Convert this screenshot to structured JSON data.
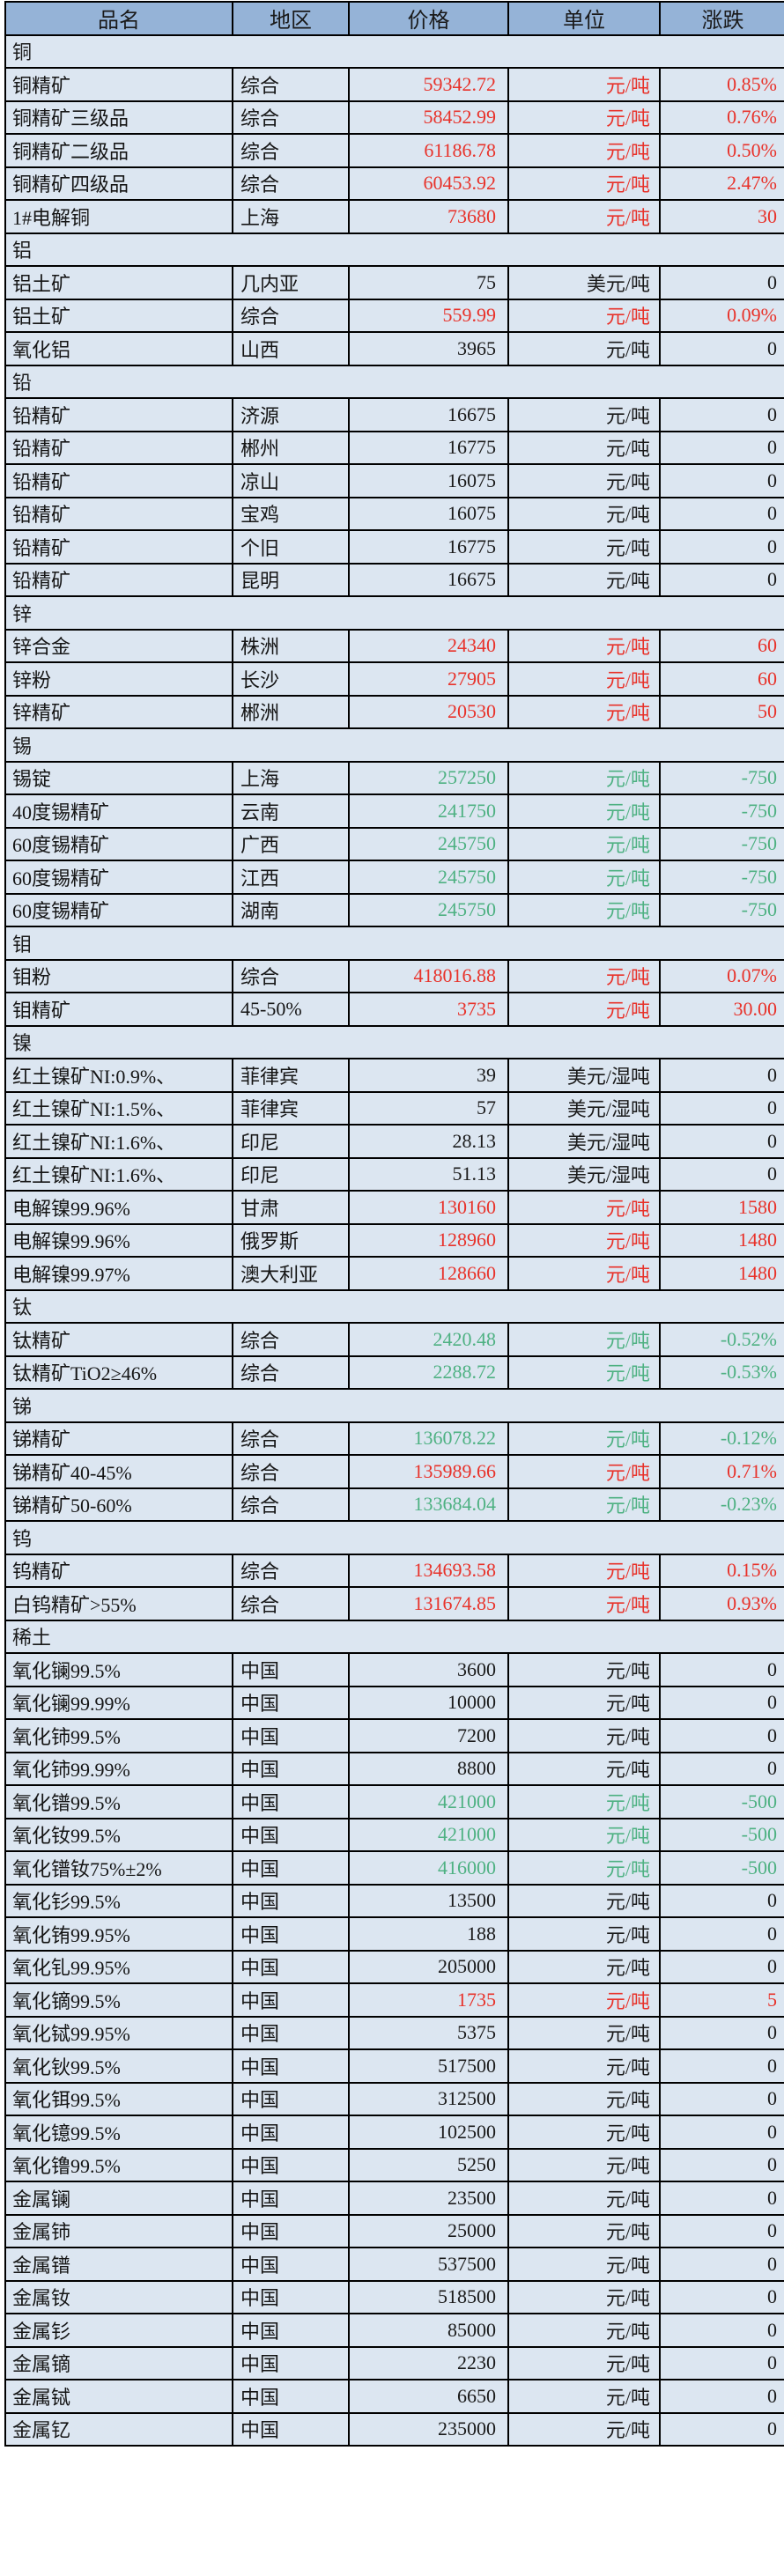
{
  "table": {
    "columns": [
      "品名",
      "地区",
      "价格",
      "单位",
      "涨跌"
    ],
    "colors": {
      "up": "#e8322a",
      "down": "#4eb182",
      "flat": "#1a1a1a",
      "header_bg": "#95b3d7",
      "row_bg": "#dce6f1",
      "border": "#000000"
    },
    "sections": [
      {
        "title": "铜",
        "rows": [
          {
            "name": "铜精矿",
            "region": "综合",
            "price": "59342.72",
            "unit": "元/吨",
            "change": "0.85%",
            "trend": "up"
          },
          {
            "name": "铜精矿三级品",
            "region": "综合",
            "price": "58452.99",
            "unit": "元/吨",
            "change": "0.76%",
            "trend": "up"
          },
          {
            "name": "铜精矿二级品",
            "region": "综合",
            "price": "61186.78",
            "unit": "元/吨",
            "change": "0.50%",
            "trend": "up"
          },
          {
            "name": "铜精矿四级品",
            "region": "综合",
            "price": "60453.92",
            "unit": "元/吨",
            "change": "2.47%",
            "trend": "up"
          },
          {
            "name": "1#电解铜",
            "region": "上海",
            "price": "73680",
            "unit": "元/吨",
            "change": "30",
            "trend": "up"
          }
        ]
      },
      {
        "title": "铝",
        "rows": [
          {
            "name": "铝土矿",
            "region": "几内亚",
            "price": "75",
            "unit": "美元/吨",
            "change": "0",
            "trend": "flat"
          },
          {
            "name": "铝土矿",
            "region": "综合",
            "price": "559.99",
            "unit": "元/吨",
            "change": "0.09%",
            "trend": "up"
          },
          {
            "name": "氧化铝",
            "region": "山西",
            "price": "3965",
            "unit": "元/吨",
            "change": "0",
            "trend": "flat"
          }
        ]
      },
      {
        "title": "铅",
        "rows": [
          {
            "name": "铅精矿",
            "region": "济源",
            "price": "16675",
            "unit": "元/吨",
            "change": "0",
            "trend": "flat"
          },
          {
            "name": "铅精矿",
            "region": "郴州",
            "price": "16775",
            "unit": "元/吨",
            "change": "0",
            "trend": "flat"
          },
          {
            "name": "铅精矿",
            "region": "凉山",
            "price": "16075",
            "unit": "元/吨",
            "change": "0",
            "trend": "flat"
          },
          {
            "name": "铅精矿",
            "region": "宝鸡",
            "price": "16075",
            "unit": "元/吨",
            "change": "0",
            "trend": "flat"
          },
          {
            "name": "铅精矿",
            "region": "个旧",
            "price": "16775",
            "unit": "元/吨",
            "change": "0",
            "trend": "flat"
          },
          {
            "name": "铅精矿",
            "region": "昆明",
            "price": "16675",
            "unit": "元/吨",
            "change": "0",
            "trend": "flat"
          }
        ]
      },
      {
        "title": "锌",
        "rows": [
          {
            "name": "锌合金",
            "region": "株洲",
            "price": "24340",
            "unit": "元/吨",
            "change": "60",
            "trend": "up"
          },
          {
            "name": "锌粉",
            "region": "长沙",
            "price": "27905",
            "unit": "元/吨",
            "change": "60",
            "trend": "up"
          },
          {
            "name": "锌精矿",
            "region": "郴洲",
            "price": "20530",
            "unit": "元/吨",
            "change": "50",
            "trend": "up"
          }
        ]
      },
      {
        "title": "锡",
        "rows": [
          {
            "name": "锡锭",
            "region": "上海",
            "price": "257250",
            "unit": "元/吨",
            "change": "-750",
            "trend": "down"
          },
          {
            "name": "40度锡精矿",
            "region": "云南",
            "price": "241750",
            "unit": "元/吨",
            "change": "-750",
            "trend": "down"
          },
          {
            "name": "60度锡精矿",
            "region": "广西",
            "price": "245750",
            "unit": "元/吨",
            "change": "-750",
            "trend": "down"
          },
          {
            "name": "60度锡精矿",
            "region": "江西",
            "price": "245750",
            "unit": "元/吨",
            "change": "-750",
            "trend": "down"
          },
          {
            "name": "60度锡精矿",
            "region": "湖南",
            "price": "245750",
            "unit": "元/吨",
            "change": "-750",
            "trend": "down"
          }
        ]
      },
      {
        "title": "钼",
        "rows": [
          {
            "name": "钼粉",
            "region": "综合",
            "price": "418016.88",
            "unit": "元/吨",
            "change": "0.07%",
            "trend": "up"
          },
          {
            "name": "钼精矿",
            "region": "45-50%",
            "price": "3735",
            "unit": "元/吨",
            "change": "30.00",
            "trend": "up"
          }
        ]
      },
      {
        "title": "镍",
        "rows": [
          {
            "name": "红土镍矿NI:0.9%、",
            "region": "菲律宾",
            "price": "39",
            "unit": "美元/湿吨",
            "change": "0",
            "trend": "flat"
          },
          {
            "name": "红土镍矿NI:1.5%、",
            "region": "菲律宾",
            "price": "57",
            "unit": "美元/湿吨",
            "change": "0",
            "trend": "flat"
          },
          {
            "name": "红土镍矿NI:1.6%、",
            "region": "印尼",
            "price": "28.13",
            "unit": "美元/湿吨",
            "change": "0",
            "trend": "flat"
          },
          {
            "name": "红土镍矿NI:1.6%、",
            "region": "印尼",
            "price": "51.13",
            "unit": "美元/湿吨",
            "change": "0",
            "trend": "flat"
          },
          {
            "name": "电解镍99.96%",
            "region": "甘肃",
            "price": "130160",
            "unit": "元/吨",
            "change": "1580",
            "trend": "up"
          },
          {
            "name": "电解镍99.96%",
            "region": "俄罗斯",
            "price": "128960",
            "unit": "元/吨",
            "change": "1480",
            "trend": "up"
          },
          {
            "name": "电解镍99.97%",
            "region": "澳大利亚",
            "price": "128660",
            "unit": "元/吨",
            "change": "1480",
            "trend": "up"
          }
        ]
      },
      {
        "title": "钛",
        "rows": [
          {
            "name": "钛精矿",
            "region": "综合",
            "price": "2420.48",
            "unit": "元/吨",
            "change": "-0.52%",
            "trend": "down"
          },
          {
            "name": "钛精矿TiO2≥46%",
            "region": "综合",
            "price": "2288.72",
            "unit": "元/吨",
            "change": "-0.53%",
            "trend": "down"
          }
        ]
      },
      {
        "title": "锑",
        "rows": [
          {
            "name": "锑精矿",
            "region": "综合",
            "price": "136078.22",
            "unit": "元/吨",
            "change": "-0.12%",
            "trend": "down"
          },
          {
            "name": "锑精矿40-45%",
            "region": "综合",
            "price": "135989.66",
            "unit": "元/吨",
            "change": "0.71%",
            "trend": "up"
          },
          {
            "name": "锑精矿50-60%",
            "region": "综合",
            "price": "133684.04",
            "unit": "元/吨",
            "change": "-0.23%",
            "trend": "down"
          }
        ]
      },
      {
        "title": "钨",
        "rows": [
          {
            "name": "钨精矿",
            "region": "综合",
            "price": "134693.58",
            "unit": "元/吨",
            "change": "0.15%",
            "trend": "up"
          },
          {
            "name": "白钨精矿>55%",
            "region": "综合",
            "price": "131674.85",
            "unit": "元/吨",
            "change": "0.93%",
            "trend": "up"
          }
        ]
      },
      {
        "title": "稀土",
        "rows": [
          {
            "name": "氧化镧99.5%",
            "region": "中国",
            "price": "3600",
            "unit": "元/吨",
            "change": "0",
            "trend": "flat"
          },
          {
            "name": "氧化镧99.99%",
            "region": "中国",
            "price": "10000",
            "unit": "元/吨",
            "change": "0",
            "trend": "flat"
          },
          {
            "name": "氧化铈99.5%",
            "region": "中国",
            "price": "7200",
            "unit": "元/吨",
            "change": "0",
            "trend": "flat"
          },
          {
            "name": "氧化铈99.99%",
            "region": "中国",
            "price": "8800",
            "unit": "元/吨",
            "change": "0",
            "trend": "flat"
          },
          {
            "name": "氧化镨99.5%",
            "region": "中国",
            "price": "421000",
            "unit": "元/吨",
            "change": "-500",
            "trend": "down"
          },
          {
            "name": "氧化钕99.5%",
            "region": "中国",
            "price": "421000",
            "unit": "元/吨",
            "change": "-500",
            "trend": "down"
          },
          {
            "name": "氧化镨钕75%±2%",
            "region": "中国",
            "price": "416000",
            "unit": "元/吨",
            "change": "-500",
            "trend": "down"
          },
          {
            "name": "氧化钐99.5%",
            "region": "中国",
            "price": "13500",
            "unit": "元/吨",
            "change": "0",
            "trend": "flat"
          },
          {
            "name": "氧化铕99.95%",
            "region": "中国",
            "price": "188",
            "unit": "元/吨",
            "change": "0",
            "trend": "flat"
          },
          {
            "name": "氧化钆99.95%",
            "region": "中国",
            "price": "205000",
            "unit": "元/吨",
            "change": "0",
            "trend": "flat"
          },
          {
            "name": "氧化镝99.5%",
            "region": "中国",
            "price": "1735",
            "unit": "元/吨",
            "change": "5",
            "trend": "up"
          },
          {
            "name": "氧化铽99.95%",
            "region": "中国",
            "price": "5375",
            "unit": "元/吨",
            "change": "0",
            "trend": "flat"
          },
          {
            "name": "氧化钬99.5%",
            "region": "中国",
            "price": "517500",
            "unit": "元/吨",
            "change": "0",
            "trend": "flat"
          },
          {
            "name": "氧化铒99.5%",
            "region": "中国",
            "price": "312500",
            "unit": "元/吨",
            "change": "0",
            "trend": "flat"
          },
          {
            "name": "氧化镱99.5%",
            "region": "中国",
            "price": "102500",
            "unit": "元/吨",
            "change": "0",
            "trend": "flat"
          },
          {
            "name": "氧化镥99.5%",
            "region": "中国",
            "price": "5250",
            "unit": "元/吨",
            "change": "0",
            "trend": "flat"
          },
          {
            "name": "金属镧",
            "region": "中国",
            "price": "23500",
            "unit": "元/吨",
            "change": "0",
            "trend": "flat"
          },
          {
            "name": "金属铈",
            "region": "中国",
            "price": "25000",
            "unit": "元/吨",
            "change": "0",
            "trend": "flat"
          },
          {
            "name": "金属镨",
            "region": "中国",
            "price": "537500",
            "unit": "元/吨",
            "change": "0",
            "trend": "flat"
          },
          {
            "name": "金属钕",
            "region": "中国",
            "price": "518500",
            "unit": "元/吨",
            "change": "0",
            "trend": "flat"
          },
          {
            "name": "金属钐",
            "region": "中国",
            "price": "85000",
            "unit": "元/吨",
            "change": "0",
            "trend": "flat"
          },
          {
            "name": "金属镝",
            "region": "中国",
            "price": "2230",
            "unit": "元/吨",
            "change": "0",
            "trend": "flat"
          },
          {
            "name": "金属铽",
            "region": "中国",
            "price": "6650",
            "unit": "元/吨",
            "change": "0",
            "trend": "flat"
          },
          {
            "name": "金属钇",
            "region": "中国",
            "price": "235000",
            "unit": "元/吨",
            "change": "0",
            "trend": "flat"
          }
        ]
      }
    ]
  }
}
